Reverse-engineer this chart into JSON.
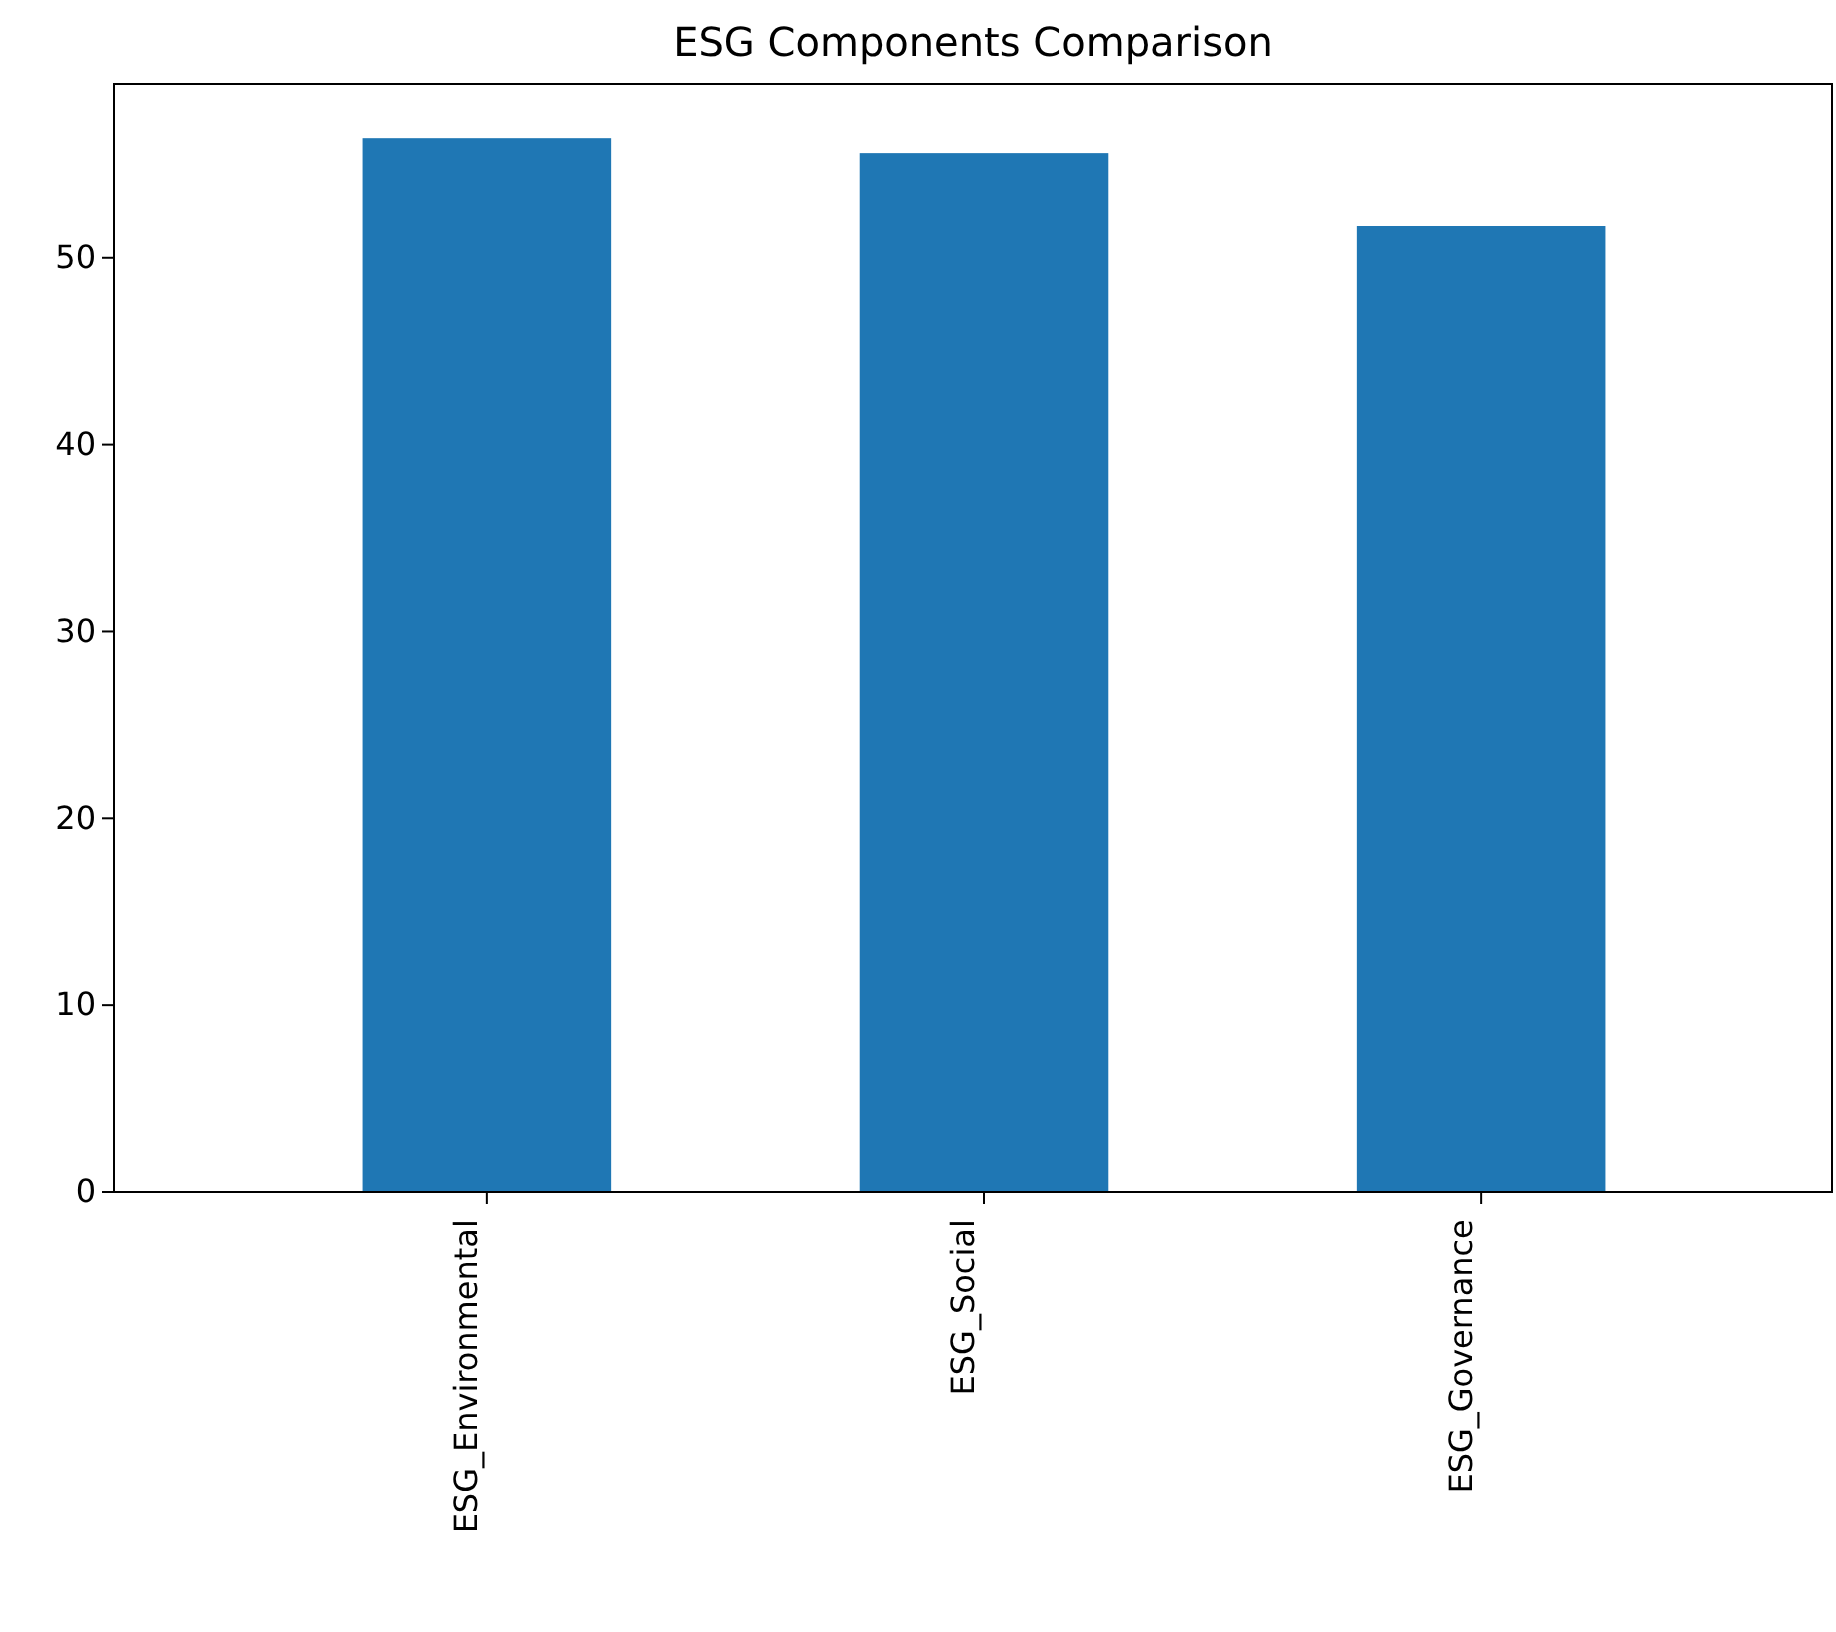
{
  "chart_data": {
    "type": "bar",
    "title": "ESG Components Comparison",
    "categories": [
      "ESG_Environmental",
      "ESG_Social",
      "ESG_Governance"
    ],
    "values": [
      56.4,
      55.6,
      51.7
    ],
    "color": "#1f77b4",
    "ylim": [
      0,
      59.3
    ],
    "yticks": [
      0,
      10,
      20,
      30,
      40,
      50
    ],
    "grid": false
  }
}
